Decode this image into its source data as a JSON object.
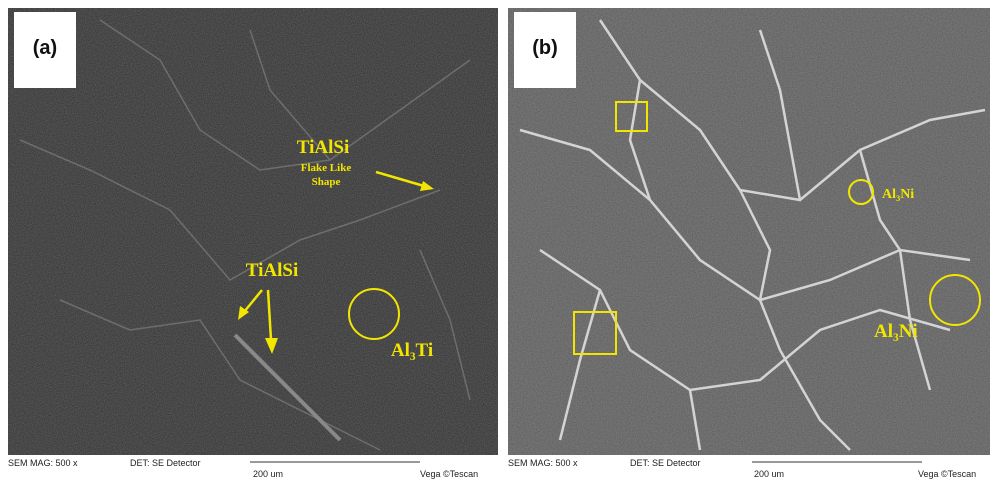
{
  "panels": [
    {
      "label": "(a)",
      "annotations": {
        "phase1": "TiAlSi",
        "phase1_note_line1": "Flake Like",
        "phase1_note_line2": "Shape",
        "phase2": "TiAlSi",
        "phase3": "Al₃Ti"
      },
      "footer": {
        "mag": "SEM MAG: 500 x",
        "det": "DET: SE Detector",
        "scale": "200 um",
        "brand": "Vega ©Tescan"
      }
    },
    {
      "label": "(b)",
      "annotations": {
        "phase1": "Al₃Ni",
        "phase2": "Al₃Ni"
      },
      "footer": {
        "mag": "SEM MAG: 500 x",
        "det": "DET: SE Detector",
        "scale": "200 um",
        "brand": "Vega ©Tescan"
      }
    }
  ]
}
